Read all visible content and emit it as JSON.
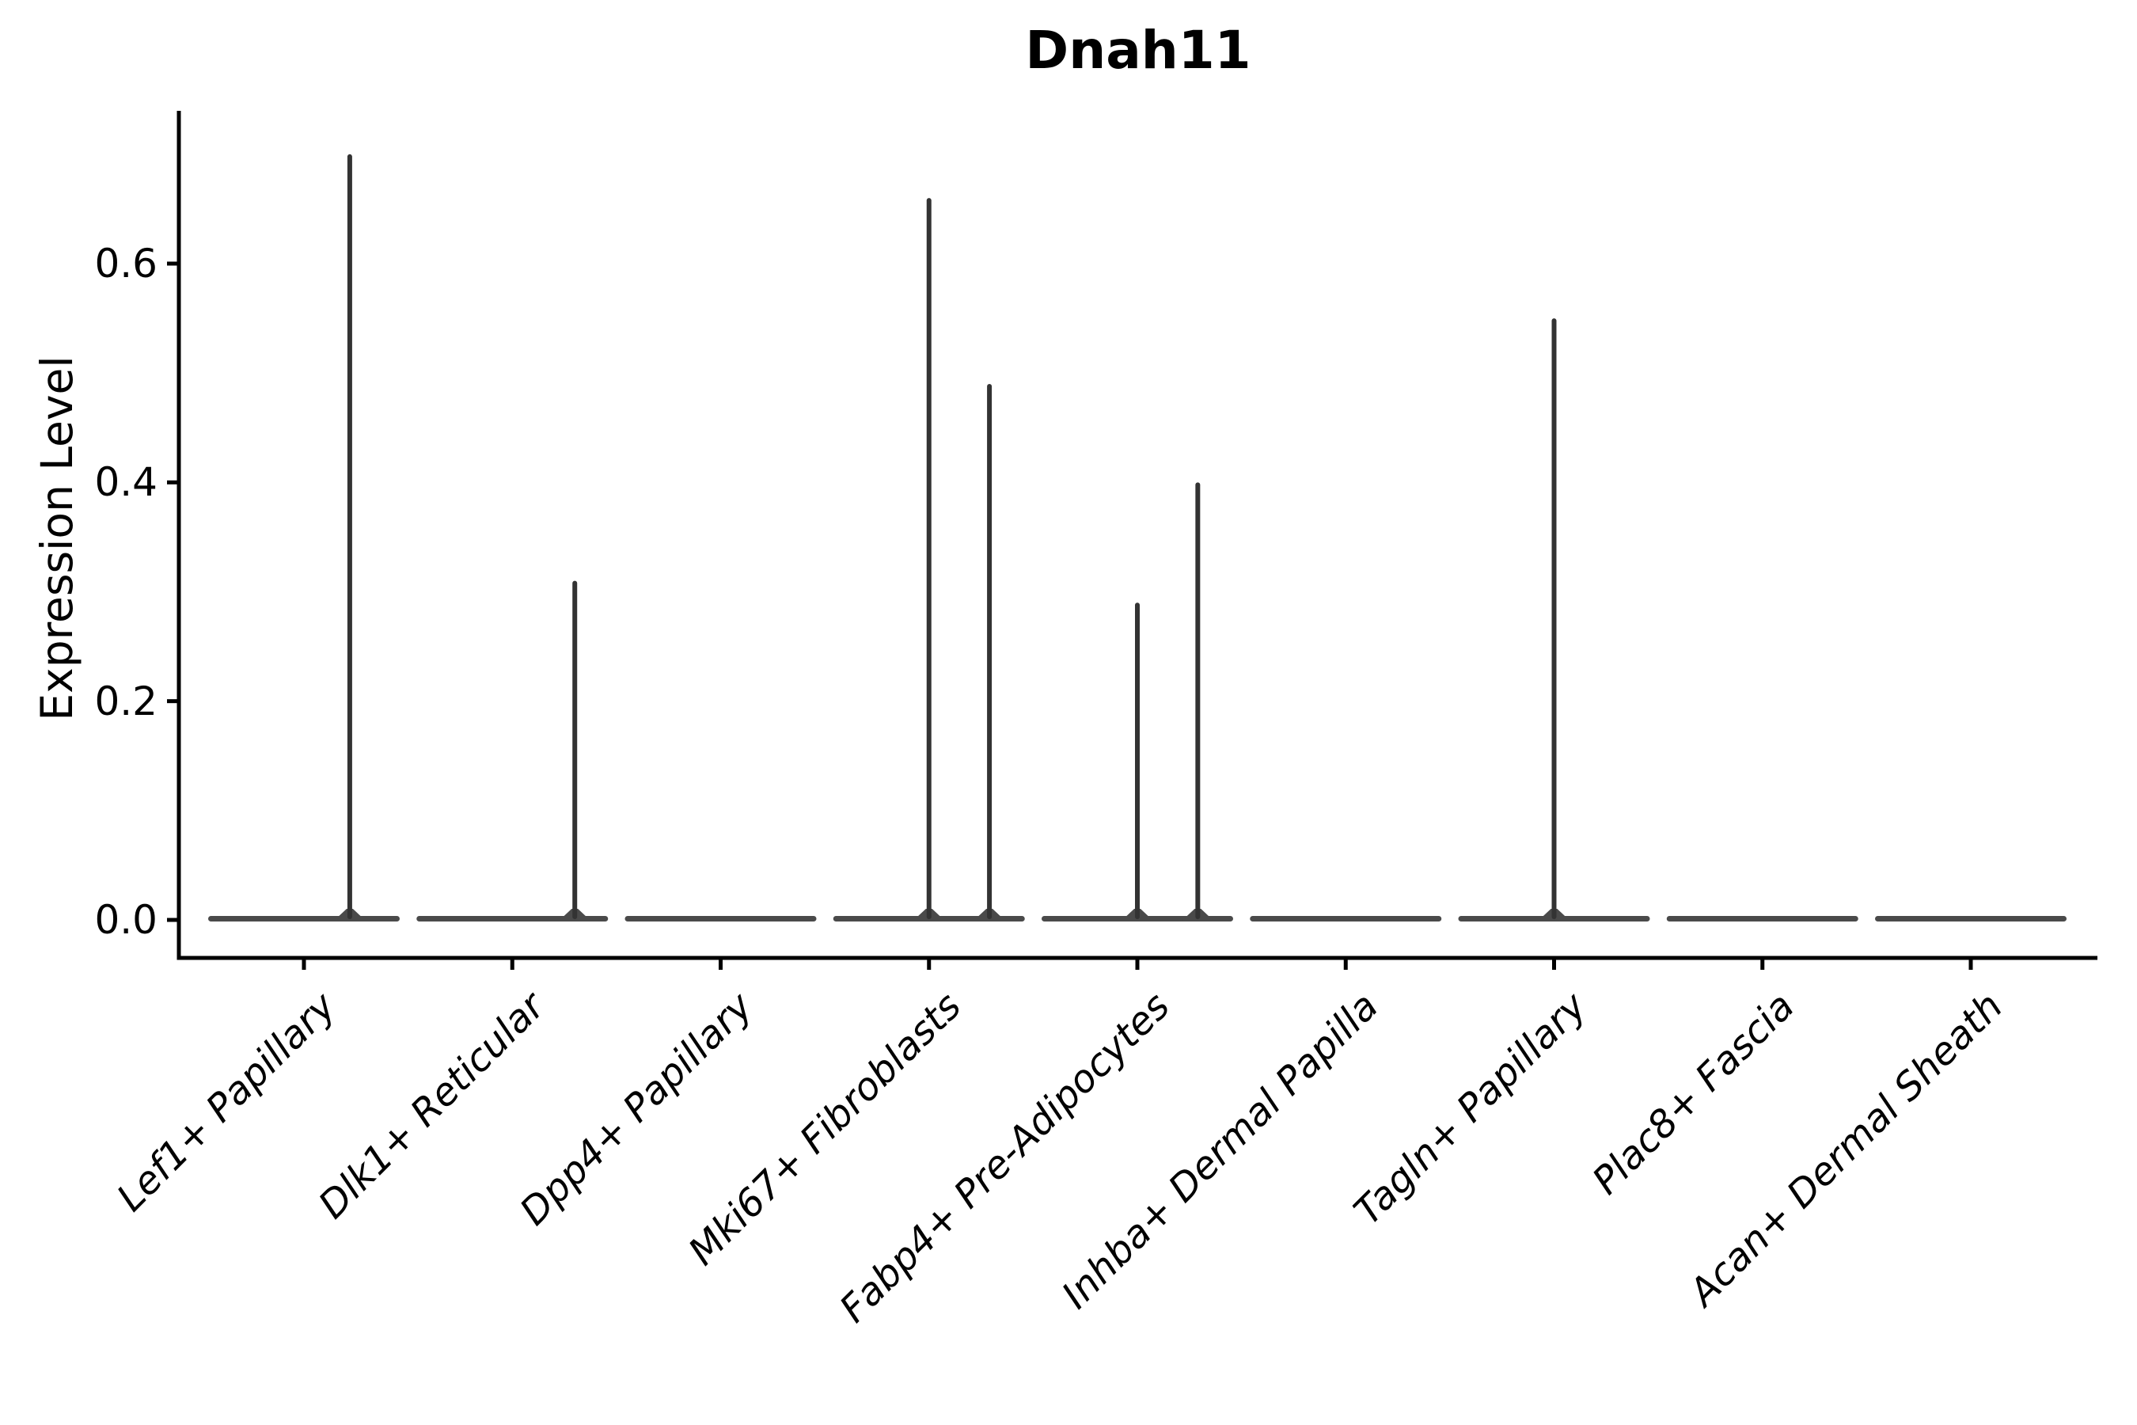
{
  "chart_data": {
    "type": "violin",
    "title": "Dnah11",
    "ylabel": "Expression Level",
    "xlabel": "",
    "grid": false,
    "legend": "none",
    "background": "#ffffff",
    "ylim": [
      -0.035,
      0.74
    ],
    "yticks": [
      0.0,
      0.2,
      0.4,
      0.6
    ],
    "ytick_labels": [
      "0.0",
      "0.2",
      "0.4",
      "0.6"
    ],
    "categories": [
      "Lef1+ Papillary",
      "Dlk1+ Reticular",
      "Dpp4+ Papillary",
      "Mki67+ Fibroblasts",
      "Fabp4+ Pre-Adipocytes",
      "Inhba+ Dermal Papilla",
      "Tagln+ Papillary",
      "Plac8+ Fascia",
      "Acan+ Dermal Sheath"
    ],
    "series": [
      {
        "category": "Lef1+ Papillary",
        "baseline_mass_at": 0.0,
        "spikes": [
          {
            "value": 0.7,
            "offset_units": 0.22
          }
        ]
      },
      {
        "category": "Dlk1+ Reticular",
        "baseline_mass_at": 0.0,
        "spikes": [
          {
            "value": 0.31,
            "offset_units": 0.3
          }
        ]
      },
      {
        "category": "Dpp4+ Papillary",
        "baseline_mass_at": 0.0,
        "spikes": []
      },
      {
        "category": "Mki67+ Fibroblasts",
        "baseline_mass_at": 0.0,
        "spikes": [
          {
            "value": 0.66,
            "offset_units": 0.0
          },
          {
            "value": 0.49,
            "offset_units": 0.29
          }
        ]
      },
      {
        "category": "Fabp4+ Pre-Adipocytes",
        "baseline_mass_at": 0.0,
        "spikes": [
          {
            "value": 0.29,
            "offset_units": 0.0
          },
          {
            "value": 0.4,
            "offset_units": 0.29
          }
        ]
      },
      {
        "category": "Inhba+ Dermal Papilla",
        "baseline_mass_at": 0.0,
        "spikes": []
      },
      {
        "category": "Tagln+ Papillary",
        "baseline_mass_at": 0.0,
        "spikes": [
          {
            "value": 0.55,
            "offset_units": 0.0
          }
        ]
      },
      {
        "category": "Plac8+ Fascia",
        "baseline_mass_at": 0.0,
        "spikes": []
      },
      {
        "category": "Acan+ Dermal Sheath",
        "baseline_mass_at": 0.0,
        "spikes": []
      }
    ],
    "colors": {
      "axis": "#000000",
      "text": "#000000",
      "violin_body": "#4a4a4a",
      "spike": "#333333"
    }
  }
}
